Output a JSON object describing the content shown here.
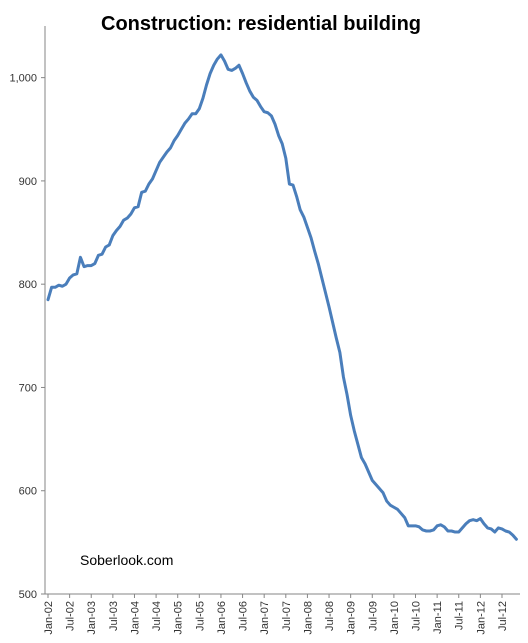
{
  "chart_data": {
    "type": "line",
    "title": "Construction: residential building",
    "xlabel": "",
    "ylabel": "",
    "ylim": [
      500,
      1050
    ],
    "yticks": [
      500,
      600,
      700,
      800,
      900,
      1000
    ],
    "ytick_labels": [
      "500",
      "600",
      "700",
      "800",
      "900",
      "1,000"
    ],
    "xtick_labels": [
      "Jan-02",
      "Jul-02",
      "Jan-03",
      "Jul-03",
      "Jan-04",
      "Jul-04",
      "Jan-05",
      "Jul-05",
      "Jan-06",
      "Jul-06",
      "Jan-07",
      "Jul-07",
      "Jan-08",
      "Jul-08",
      "Jan-09",
      "Jul-09",
      "Jan-10",
      "Jul-10",
      "Jan-11",
      "Jul-11",
      "Jan-12",
      "Jul-12"
    ],
    "grid": false,
    "line_color": "#4a7ebb",
    "series": [
      {
        "x_start": "Jan-02",
        "frequency": "monthly",
        "values": [
          785,
          797,
          797,
          799,
          798,
          800,
          806,
          809,
          810,
          826,
          817,
          818,
          818,
          820,
          828,
          829,
          836,
          838,
          847,
          852,
          856,
          862,
          864,
          868,
          874,
          875,
          889,
          890,
          897,
          902,
          910,
          918,
          923,
          928,
          932,
          939,
          944,
          950,
          956,
          960,
          965,
          965,
          970,
          980,
          993,
          1004,
          1012,
          1018,
          1022,
          1016,
          1008,
          1007,
          1009,
          1012,
          1004,
          995,
          987,
          981,
          978,
          972,
          967,
          966,
          963,
          955,
          944,
          936,
          922,
          897,
          896,
          885,
          872,
          865,
          855,
          845,
          832,
          820,
          806,
          792,
          778,
          763,
          748,
          734,
          710,
          693,
          673,
          658,
          645,
          632,
          626,
          618,
          610,
          606,
          602,
          598,
          590,
          586,
          584,
          582,
          578,
          574,
          566,
          566,
          566,
          565,
          562,
          561,
          561,
          562,
          566,
          567,
          565,
          561,
          561,
          560,
          560,
          564,
          568,
          571,
          572,
          571,
          573,
          568,
          564,
          563,
          560,
          564,
          563,
          561,
          560,
          557,
          553
        ]
      }
    ],
    "annotations": [
      "Soberlook.com"
    ]
  }
}
